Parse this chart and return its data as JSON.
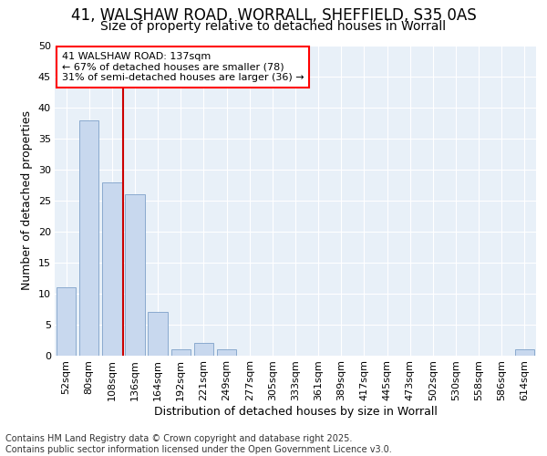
{
  "title_line1": "41, WALSHAW ROAD, WORRALL, SHEFFIELD, S35 0AS",
  "title_line2": "Size of property relative to detached houses in Worrall",
  "xlabel": "Distribution of detached houses by size in Worrall",
  "ylabel": "Number of detached properties",
  "fig_background_color": "#ffffff",
  "plot_background_color": "#e8f0f8",
  "bar_color": "#c8d8ee",
  "bar_edge_color": "#8aaace",
  "categories": [
    "52sqm",
    "80sqm",
    "108sqm",
    "136sqm",
    "164sqm",
    "192sqm",
    "221sqm",
    "249sqm",
    "277sqm",
    "305sqm",
    "333sqm",
    "361sqm",
    "389sqm",
    "417sqm",
    "445sqm",
    "473sqm",
    "502sqm",
    "530sqm",
    "558sqm",
    "586sqm",
    "614sqm"
  ],
  "values": [
    11,
    38,
    28,
    26,
    7,
    1,
    2,
    1,
    0,
    0,
    0,
    0,
    0,
    0,
    0,
    0,
    0,
    0,
    0,
    0,
    1
  ],
  "ylim": [
    0,
    50
  ],
  "yticks": [
    0,
    5,
    10,
    15,
    20,
    25,
    30,
    35,
    40,
    45,
    50
  ],
  "property_line_color": "#cc0000",
  "annotation_text": "41 WALSHAW ROAD: 137sqm\n← 67% of detached houses are smaller (78)\n31% of semi-detached houses are larger (36) →",
  "footer_line1": "Contains HM Land Registry data © Crown copyright and database right 2025.",
  "footer_line2": "Contains public sector information licensed under the Open Government Licence v3.0.",
  "title_fontsize": 12,
  "subtitle_fontsize": 10,
  "axis_label_fontsize": 9,
  "tick_fontsize": 8,
  "annotation_fontsize": 8,
  "footer_fontsize": 7
}
